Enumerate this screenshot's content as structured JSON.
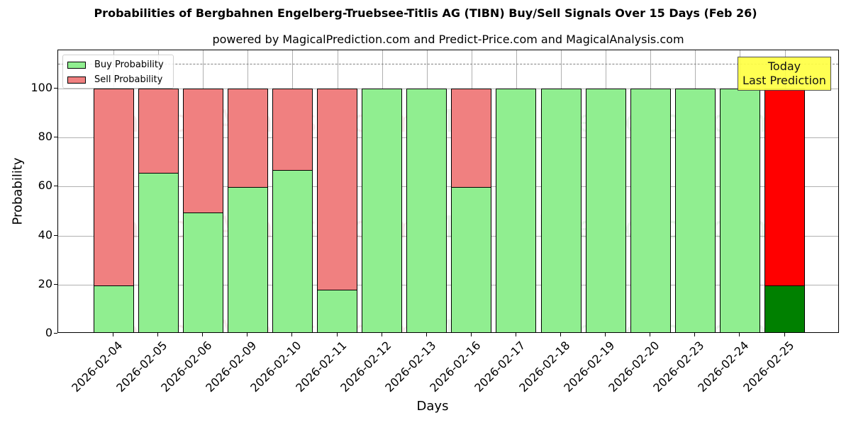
{
  "chart_data": {
    "type": "bar",
    "stacked": true,
    "title": "Probabilities of Bergbahnen Engelberg-Truebsee-Titlis AG (TIBN) Buy/Sell Signals Over 15 Days (Feb 26)",
    "subtitle": "powered by MagicalPrediction.com and Predict-Price.com and MagicalAnalysis.com",
    "xlabel": "Days",
    "ylabel": "Probability",
    "ylim": [
      0,
      115
    ],
    "yticks": [
      "0",
      "20",
      "40",
      "60",
      "80",
      "100"
    ],
    "grid": true,
    "legend_position": "upper left",
    "reference_line": {
      "y": 110,
      "style": "dashed",
      "color": "#808080"
    },
    "categories": [
      "2026-02-04",
      "2026-02-05",
      "2026-02-06",
      "2026-02-09",
      "2026-02-10",
      "2026-02-11",
      "2026-02-12",
      "2026-02-13",
      "2026-02-16",
      "2026-02-17",
      "2026-02-18",
      "2026-02-19",
      "2026-02-20",
      "2026-02-23",
      "2026-02-24",
      "2026-02-25"
    ],
    "series": [
      {
        "name": "Buy Probability",
        "color": "#90ee90",
        "values": [
          19.7,
          65.7,
          49.3,
          59.9,
          66.9,
          17.9,
          100,
          100,
          59.7,
          100,
          100,
          100,
          100,
          100,
          100,
          19.7
        ]
      },
      {
        "name": "Sell Probability",
        "color": "#f08080",
        "values": [
          80.3,
          34.3,
          50.7,
          40.1,
          33.1,
          82.1,
          0,
          0,
          40.3,
          0,
          0,
          0,
          0,
          0,
          0,
          80.3
        ]
      }
    ],
    "highlight": {
      "index": 15,
      "buy_color": "#008000",
      "sell_color": "#ff0000"
    },
    "annotation": {
      "line1": "Today",
      "line2": "Last Prediction",
      "background": "#ffff44"
    }
  },
  "legend": {
    "buy": "Buy Probability",
    "sell": "Sell Probability"
  },
  "watermarks": [
    "MagicalAnalysis.com",
    "MagicalPrediction.com"
  ]
}
